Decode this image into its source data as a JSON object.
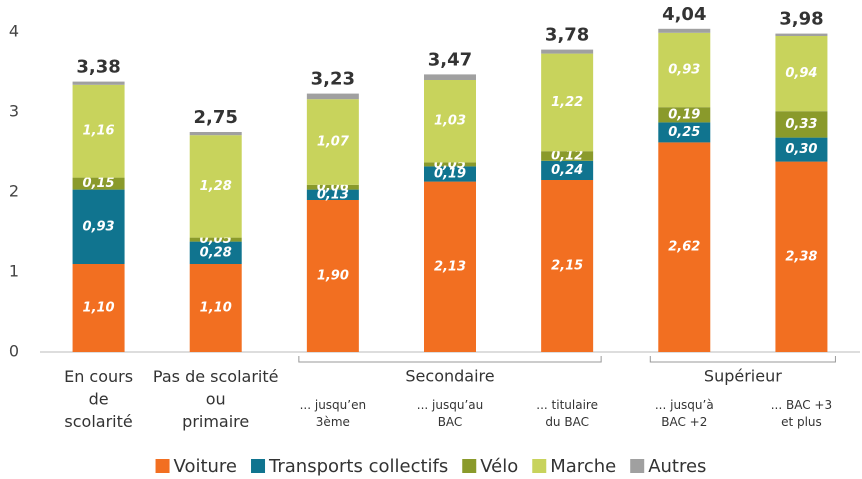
{
  "chart_data": {
    "type": "stacked_bar",
    "categories": [
      [
        "En cours",
        "de",
        "scolarité"
      ],
      [
        "Pas de scolarité",
        "ou",
        "primaire"
      ],
      [
        "... jusqu’en",
        "3ème"
      ],
      [
        "... jusqu’au",
        "BAC"
      ],
      [
        "... titulaire",
        "du BAC"
      ],
      [
        "... jusqu’à",
        "BAC +2"
      ],
      [
        "... BAC +3",
        "et plus"
      ]
    ],
    "groups": [
      {
        "name": "Secondaire",
        "members": [
          2,
          3,
          4
        ]
      },
      {
        "name": "Supérieur",
        "members": [
          5,
          6
        ]
      }
    ],
    "series": [
      {
        "name": "Voiture",
        "color": "#f26f21",
        "values": [
          1.1,
          1.1,
          1.9,
          2.13,
          2.15,
          2.62,
          2.38
        ],
        "value_labels": [
          "1,10",
          "1,10",
          "1,90",
          "2,13",
          "2,15",
          "2,62",
          "2,38"
        ]
      },
      {
        "name": "Transports collectifs",
        "color": "#10748f",
        "values": [
          0.93,
          0.28,
          0.13,
          0.19,
          0.24,
          0.25,
          0.3
        ],
        "value_labels": [
          "0,93",
          "0,28",
          "0,13",
          "0,19",
          "0,24",
          "0,25",
          "0,30"
        ]
      },
      {
        "name": "Vélo",
        "color": "#8a9a2b",
        "values": [
          0.15,
          0.05,
          0.06,
          0.05,
          0.12,
          0.19,
          0.33
        ],
        "value_labels": [
          "0,15",
          "0,05",
          "0,06",
          "0,05",
          "0,12",
          "0,19",
          "0,33"
        ]
      },
      {
        "name": "Marche",
        "color": "#c8d35c",
        "values": [
          1.16,
          1.28,
          1.07,
          1.03,
          1.22,
          0.93,
          0.94
        ],
        "value_labels": [
          "1,16",
          "1,28",
          "1,07",
          "1,03",
          "1,22",
          "0,93",
          "0,94"
        ]
      },
      {
        "name": "Autres",
        "color": "#a0a0a0",
        "values": [
          0.04,
          0.04,
          0.07,
          0.07,
          0.05,
          0.05,
          0.03
        ]
      }
    ],
    "totals": [
      3.38,
      2.75,
      3.23,
      3.47,
      3.78,
      4.04,
      3.98
    ],
    "total_labels": [
      "3,38",
      "2,75",
      "3,23",
      "3,47",
      "3,78",
      "4,04",
      "3,98"
    ],
    "ylim": [
      0,
      4.3
    ],
    "yticks": [
      0,
      1,
      2,
      3,
      4
    ],
    "grid": false,
    "legend": "bottom"
  }
}
